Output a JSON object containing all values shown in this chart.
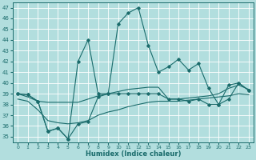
{
  "xlabel": "Humidex (Indice chaleur)",
  "xlim": [
    -0.5,
    23.5
  ],
  "ylim": [
    34.5,
    47.5
  ],
  "yticks": [
    35,
    36,
    37,
    38,
    39,
    40,
    41,
    42,
    43,
    44,
    45,
    46,
    47
  ],
  "xticks": [
    0,
    1,
    2,
    3,
    4,
    5,
    6,
    7,
    8,
    9,
    10,
    11,
    12,
    13,
    14,
    15,
    16,
    17,
    18,
    19,
    20,
    21,
    22,
    23
  ],
  "bg_color": "#b2dede",
  "grid_color": "#c8eaea",
  "line_color": "#1a6b6b",
  "line_main_x": [
    0,
    1,
    2,
    3,
    4,
    5,
    6,
    7,
    8,
    9,
    10,
    11,
    12,
    13,
    14,
    15,
    16,
    17,
    18,
    19,
    20,
    21,
    22,
    23
  ],
  "line_main_y": [
    39.0,
    38.9,
    38.3,
    35.5,
    35.8,
    34.8,
    42.0,
    44.0,
    39.0,
    39.0,
    45.5,
    46.5,
    47.0,
    43.5,
    41.0,
    41.5,
    42.2,
    41.2,
    41.8,
    39.5,
    38.0,
    39.8,
    40.0,
    39.3
  ],
  "line_low_x": [
    0,
    1,
    2,
    3,
    4,
    5,
    6,
    7,
    8,
    9,
    10,
    11,
    12,
    13,
    14,
    15,
    16,
    17,
    18,
    19,
    20,
    21,
    22,
    23
  ],
  "line_low_y": [
    39.0,
    38.9,
    38.3,
    35.5,
    35.8,
    34.8,
    36.2,
    36.4,
    38.7,
    39.0,
    39.0,
    39.0,
    39.0,
    39.0,
    39.0,
    38.5,
    38.5,
    38.3,
    38.5,
    38.0,
    38.0,
    38.5,
    40.0,
    39.3
  ],
  "line_flat1_x": [
    0,
    1,
    2,
    3,
    4,
    5,
    6,
    7,
    8,
    9,
    10,
    11,
    12,
    13,
    14,
    15,
    16,
    17,
    18,
    19,
    20,
    21,
    22,
    23
  ],
  "line_flat1_y": [
    39.0,
    38.7,
    38.3,
    38.2,
    38.2,
    38.2,
    38.2,
    38.5,
    38.8,
    39.0,
    39.2,
    39.4,
    39.5,
    39.6,
    39.6,
    38.5,
    38.5,
    38.6,
    38.7,
    38.8,
    39.0,
    39.5,
    39.8,
    39.4
  ],
  "line_flat2_x": [
    0,
    1,
    2,
    3,
    4,
    5,
    6,
    7,
    8,
    9,
    10,
    11,
    12,
    13,
    14,
    15,
    16,
    17,
    18,
    19,
    20,
    21,
    22,
    23
  ],
  "line_flat2_y": [
    38.5,
    38.3,
    37.5,
    36.5,
    36.3,
    36.2,
    36.3,
    36.5,
    37.0,
    37.3,
    37.5,
    37.8,
    38.0,
    38.2,
    38.3,
    38.3,
    38.3,
    38.4,
    38.5,
    38.6,
    38.7,
    38.8,
    39.0,
    38.9
  ]
}
